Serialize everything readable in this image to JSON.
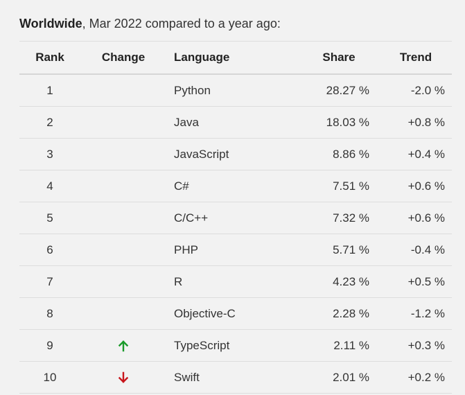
{
  "caption": {
    "bold": "Worldwide",
    "rest": ", Mar 2022 compared to a year ago:"
  },
  "table": {
    "headers": {
      "rank": "Rank",
      "change": "Change",
      "language": "Language",
      "share": "Share",
      "trend": "Trend"
    },
    "rows": [
      {
        "rank": "1",
        "change": "",
        "language": "Python",
        "share": "28.27 %",
        "trend": "-2.0 %"
      },
      {
        "rank": "2",
        "change": "",
        "language": "Java",
        "share": "18.03 %",
        "trend": "+0.8 %"
      },
      {
        "rank": "3",
        "change": "",
        "language": "JavaScript",
        "share": "8.86 %",
        "trend": "+0.4 %"
      },
      {
        "rank": "4",
        "change": "",
        "language": "C#",
        "share": "7.51 %",
        "trend": "+0.6 %"
      },
      {
        "rank": "5",
        "change": "",
        "language": "C/C++",
        "share": "7.32 %",
        "trend": "+0.6 %"
      },
      {
        "rank": "6",
        "change": "",
        "language": "PHP",
        "share": "5.71 %",
        "trend": "-0.4 %"
      },
      {
        "rank": "7",
        "change": "",
        "language": "R",
        "share": "4.23 %",
        "trend": "+0.5 %"
      },
      {
        "rank": "8",
        "change": "",
        "language": "Objective-C",
        "share": "2.28 %",
        "trend": "-1.2 %"
      },
      {
        "rank": "9",
        "change": "arrow-up-icon",
        "language": "TypeScript",
        "share": "2.11 %",
        "trend": "+0.3 %"
      },
      {
        "rank": "10",
        "change": "arrow-down-icon",
        "language": "Swift",
        "share": "2.01 %",
        "trend": "+0.2 %"
      }
    ]
  },
  "colors": {
    "background": "#f2f2f2",
    "text": "#333333",
    "up_arrow": "#1a9a2a",
    "down_arrow": "#c8161d",
    "rule": "#dddddd"
  }
}
